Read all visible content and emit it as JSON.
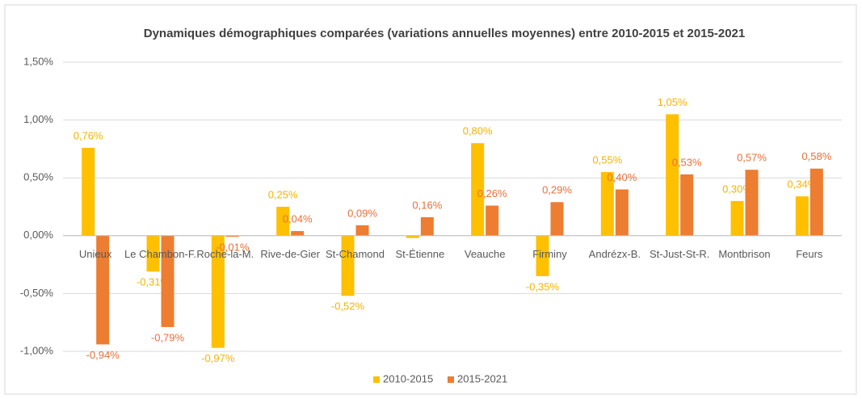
{
  "chart_data": {
    "type": "bar",
    "title": "Dynamiques démographiques comparées (variations annuelles moyennes) entre 2010-2015 et 2015-2021",
    "categories": [
      "Unieux",
      "Le Chambon-F.",
      "Roche-la-M.",
      "Rive-de-Gier",
      "St-Chamond",
      "St-Étienne",
      "Veauche",
      "Firminy",
      "Andrézx-B.",
      "St-Just-St-R.",
      "Montbrison",
      "Feurs"
    ],
    "series": [
      {
        "name": "2010-2015",
        "color": "#ffc000",
        "values": [
          0.76,
          -0.31,
          -0.97,
          0.25,
          -0.52,
          -0.02,
          0.8,
          -0.35,
          0.55,
          1.05,
          0.3,
          0.34
        ],
        "value_labels": [
          "0,76%",
          "-0,31%",
          "-0,97%",
          "0,25%",
          "-0,52%",
          null,
          "0,80%",
          "-0,35%",
          "0,55%",
          "1,05%",
          "0,30%",
          "0,34%"
        ]
      },
      {
        "name": "2015-2021",
        "color": "#ed7d31",
        "values": [
          -0.94,
          -0.79,
          -0.01,
          0.04,
          0.09,
          0.16,
          0.26,
          0.29,
          0.4,
          0.53,
          0.57,
          0.58
        ],
        "value_labels": [
          "-0,94%",
          "-0,79%",
          "-0,01%",
          "0,04%",
          "0,09%",
          "0,16%",
          "0,26%",
          "0,29%",
          "0,40%",
          "0,53%",
          "0,57%",
          "0,58%"
        ]
      }
    ],
    "ylim": [
      -1,
      1.5
    ],
    "yticks": [
      {
        "value": -1,
        "label": "-1,00%"
      },
      {
        "value": -0.5,
        "label": "-0,50%"
      },
      {
        "value": 0,
        "label": "0,00%"
      },
      {
        "value": 0.5,
        "label": "0,50%"
      },
      {
        "value": 1,
        "label": "1,00%"
      },
      {
        "value": 1.5,
        "label": "1,50%"
      }
    ],
    "grid": true,
    "legend": "bottom"
  }
}
